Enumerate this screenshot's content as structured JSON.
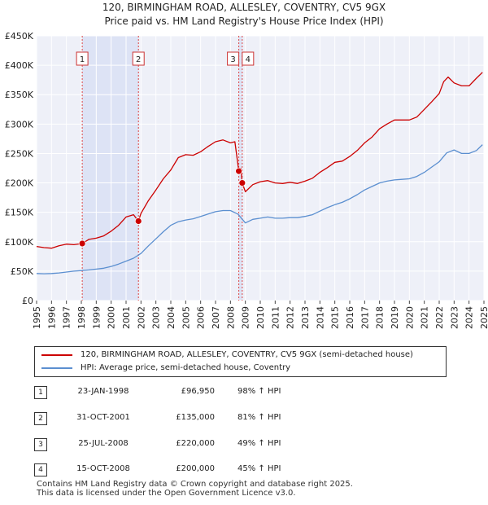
{
  "chart_data": {
    "type": "line",
    "title": "120, BIRMINGHAM ROAD, ALLESLEY, COVENTRY, CV5 9GX",
    "subtitle": "Price paid vs. HM Land Registry's House Price Index (HPI)",
    "xlim": [
      1995,
      2025
    ],
    "ylim": [
      0,
      450000
    ],
    "x_ticks": [
      "1995",
      "1996",
      "1997",
      "1998",
      "1999",
      "2000",
      "2001",
      "2002",
      "2003",
      "2004",
      "2005",
      "2006",
      "2007",
      "2008",
      "2009",
      "2010",
      "2011",
      "2012",
      "2013",
      "2014",
      "2015",
      "2016",
      "2017",
      "2018",
      "2019",
      "2020",
      "2021",
      "2022",
      "2023",
      "2024",
      "2025"
    ],
    "y_ticks": [
      {
        "value": 0,
        "label": "£0"
      },
      {
        "value": 50000,
        "label": "£50K"
      },
      {
        "value": 100000,
        "label": "£100K"
      },
      {
        "value": 150000,
        "label": "£150K"
      },
      {
        "value": 200000,
        "label": "£200K"
      },
      {
        "value": 250000,
        "label": "£250K"
      },
      {
        "value": 300000,
        "label": "£300K"
      },
      {
        "value": 350000,
        "label": "£350K"
      },
      {
        "value": 400000,
        "label": "£400K"
      },
      {
        "value": 450000,
        "label": "£450K"
      }
    ],
    "grid": true,
    "shaded_spans": [
      [
        1998.06,
        2001.83
      ],
      [
        2008.56,
        2008.79
      ]
    ],
    "series": [
      {
        "name": "120, BIRMINGHAM ROAD, ALLESLEY, COVENTRY, CV5 9GX (semi-detached house)",
        "color": "#cc0000",
        "x": [
          1995.0,
          1995.5,
          1996.0,
          1996.5,
          1997.0,
          1997.5,
          1998.06,
          1998.5,
          1999.0,
          1999.5,
          2000.0,
          2000.5,
          2001.0,
          2001.5,
          2001.83,
          2002.0,
          2002.5,
          2003.0,
          2003.5,
          2004.0,
          2004.5,
          2005.0,
          2005.5,
          2006.0,
          2006.5,
          2007.0,
          2007.5,
          2008.0,
          2008.3,
          2008.56,
          2008.7,
          2008.79,
          2009.0,
          2009.5,
          2010.0,
          2010.5,
          2011.0,
          2011.5,
          2012.0,
          2012.5,
          2013.0,
          2013.5,
          2014.0,
          2014.5,
          2015.0,
          2015.5,
          2016.0,
          2016.5,
          2017.0,
          2017.5,
          2018.0,
          2018.5,
          2019.0,
          2019.5,
          2020.0,
          2020.5,
          2021.0,
          2021.5,
          2022.0,
          2022.3,
          2022.6,
          2023.0,
          2023.5,
          2024.0,
          2024.5,
          2024.9
        ],
        "values": [
          92000,
          90000,
          89000,
          93000,
          96000,
          95000,
          96950,
          104000,
          106000,
          110000,
          118000,
          128000,
          142000,
          146000,
          135000,
          148000,
          170000,
          188000,
          207000,
          222000,
          243000,
          248000,
          247000,
          253000,
          262000,
          270000,
          273000,
          268000,
          270000,
          220000,
          225000,
          200000,
          185000,
          197000,
          202000,
          204000,
          200000,
          199000,
          201000,
          199000,
          203000,
          208000,
          218000,
          226000,
          235000,
          237000,
          245000,
          255000,
          268000,
          278000,
          292000,
          300000,
          307000,
          307000,
          307000,
          312000,
          325000,
          338000,
          352000,
          372000,
          380000,
          370000,
          365000,
          365000,
          378000,
          388000
        ]
      },
      {
        "name": "HPI: Average price, semi-detached house, Coventry",
        "color": "#5b8fd0",
        "x": [
          1995.0,
          1995.5,
          1996.0,
          1996.5,
          1997.0,
          1997.5,
          1998.0,
          1998.5,
          1999.0,
          1999.5,
          2000.0,
          2000.5,
          2001.0,
          2001.5,
          2002.0,
          2002.5,
          2003.0,
          2003.5,
          2004.0,
          2004.5,
          2005.0,
          2005.5,
          2006.0,
          2006.5,
          2007.0,
          2007.5,
          2008.0,
          2008.5,
          2009.0,
          2009.5,
          2010.0,
          2010.5,
          2011.0,
          2011.5,
          2012.0,
          2012.5,
          2013.0,
          2013.5,
          2014.0,
          2014.5,
          2015.0,
          2015.5,
          2016.0,
          2016.5,
          2017.0,
          2017.5,
          2018.0,
          2018.5,
          2019.0,
          2019.5,
          2020.0,
          2020.5,
          2021.0,
          2021.5,
          2022.0,
          2022.5,
          2023.0,
          2023.5,
          2024.0,
          2024.5,
          2024.9
        ],
        "values": [
          46000,
          45500,
          46000,
          47000,
          48500,
          50000,
          51000,
          52000,
          53500,
          55000,
          58000,
          62000,
          67000,
          72000,
          80000,
          93000,
          105000,
          117000,
          128000,
          134000,
          137000,
          139000,
          143000,
          147000,
          151000,
          153000,
          153000,
          147000,
          132000,
          138000,
          140000,
          142000,
          140000,
          140000,
          141000,
          141000,
          143000,
          146000,
          152000,
          158000,
          163000,
          167000,
          173000,
          180000,
          188000,
          194000,
          200000,
          203000,
          205000,
          206000,
          207000,
          211000,
          218000,
          227000,
          236000,
          251000,
          256000,
          250000,
          250000,
          255000,
          265000
        ]
      }
    ],
    "markers": [
      {
        "label": "1",
        "x": 1998.06,
        "y": 96950
      },
      {
        "label": "2",
        "x": 2001.83,
        "y": 135000
      },
      {
        "label": "3",
        "x": 2008.56,
        "y": 220000
      },
      {
        "label": "4",
        "x": 2008.79,
        "y": 200000
      }
    ]
  },
  "legend": {
    "items": [
      {
        "label": "120, BIRMINGHAM ROAD, ALLESLEY, COVENTRY, CV5 9GX (semi-detached house)",
        "color": "#cc0000"
      },
      {
        "label": "HPI: Average price, semi-detached house, Coventry",
        "color": "#5b8fd0"
      }
    ]
  },
  "sales": [
    {
      "num": "1",
      "date": "23-JAN-1998",
      "price": "£96,950",
      "hpi": "98% ↑ HPI"
    },
    {
      "num": "2",
      "date": "31-OCT-2001",
      "price": "£135,000",
      "hpi": "81% ↑ HPI"
    },
    {
      "num": "3",
      "date": "25-JUL-2008",
      "price": "£220,000",
      "hpi": "49% ↑ HPI"
    },
    {
      "num": "4",
      "date": "15-OCT-2008",
      "price": "£200,000",
      "hpi": "45% ↑ HPI"
    }
  ],
  "footer": {
    "line1": "Contains HM Land Registry data © Crown copyright and database right 2025.",
    "line2": "This data is licensed under the Open Government Licence v3.0."
  }
}
